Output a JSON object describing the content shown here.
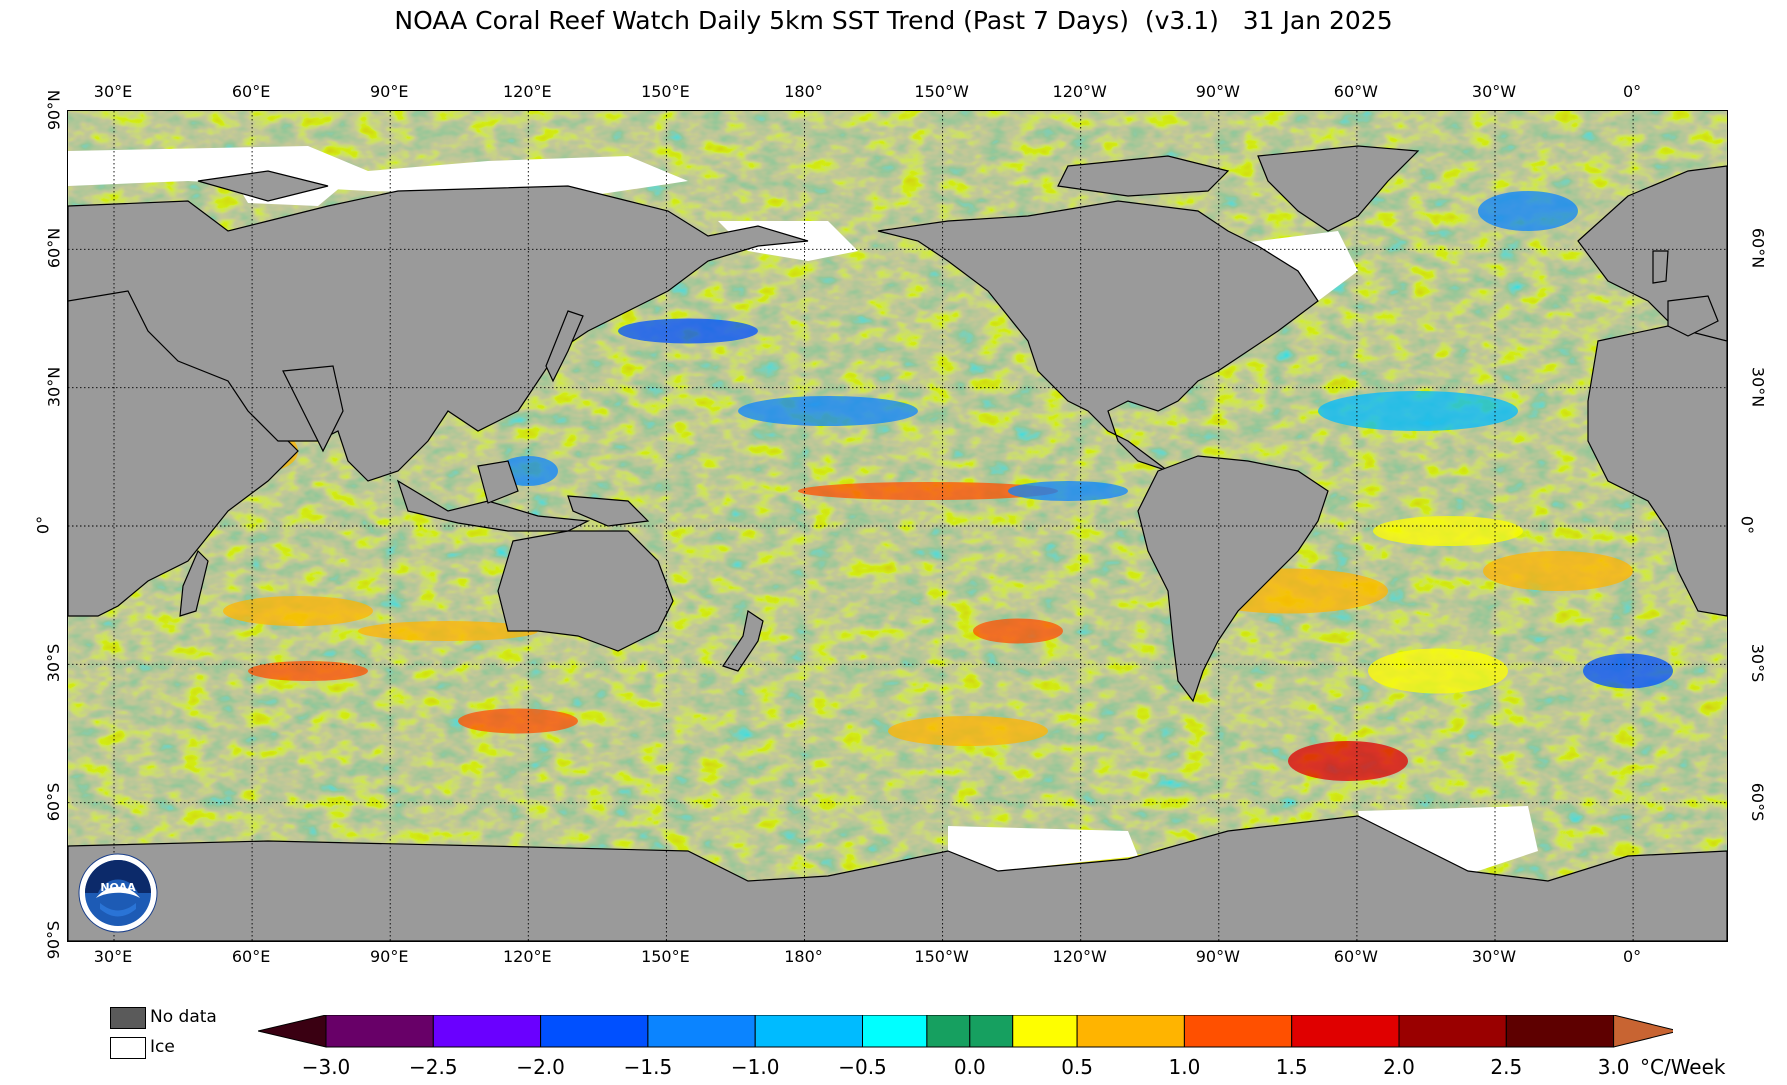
{
  "title": "NOAA Coral Reef Watch Daily 5km SST Trend (Past 7 Days)  (v3.1)   31 Jan 2025",
  "lon_labels": [
    "30°E",
    "60°E",
    "90°E",
    "120°E",
    "150°E",
    "180°",
    "150°W",
    "120°W",
    "90°W",
    "60°W",
    "30°W",
    "0°"
  ],
  "lat_labels": [
    "90°N",
    "60°N",
    "30°N",
    "0°",
    "30°S",
    "60°S",
    "90°S"
  ],
  "legend": {
    "no_data": "No data",
    "ice": "Ice"
  },
  "colorbar": {
    "ticks": [
      "−3.0",
      "−2.5",
      "−2.0",
      "−1.5",
      "−1.0",
      "−0.5",
      "0.0",
      "0.5",
      "1.0",
      "1.5",
      "2.0",
      "2.5",
      "3.0"
    ],
    "units": "°C/Week",
    "colors": [
      "#680068",
      "#6a00ff",
      "#0050ff",
      "#0b84ff",
      "#00bbff",
      "#00ffff",
      "#16a060",
      "#fefe00",
      "#ffb400",
      "#ff5000",
      "#e00000",
      "#9a0000",
      "#5e0000"
    ],
    "under_color": "#3a0012",
    "over_color": "#c86432"
  },
  "map_colors": {
    "land": "#9a9a9a",
    "ice": "#ffffff",
    "ocean_base": "#16a060"
  },
  "logo_text": "NOAA"
}
